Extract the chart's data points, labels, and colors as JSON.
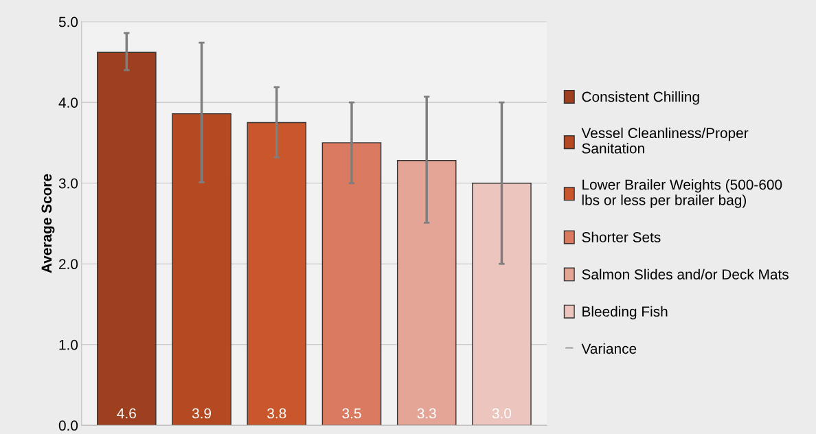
{
  "chart_data": {
    "type": "bar",
    "ylabel": "Average Score",
    "categories": [
      null,
      null,
      null,
      null,
      null,
      null
    ],
    "series": [
      {
        "name": "Consistent Chilling",
        "color": "#9e3f1f",
        "values": [
          4.62,
          null,
          null,
          null,
          null,
          null
        ],
        "errors": [
          [
            4.4,
            4.86
          ],
          null,
          null,
          null,
          null,
          null
        ],
        "value_labels": [
          "4.6",
          null,
          null,
          null,
          null,
          null
        ]
      },
      {
        "name": "Vessel Cleanliness/Proper Sanitation",
        "color": "#b54a22",
        "values": [
          null,
          3.86,
          null,
          null,
          null,
          null
        ],
        "errors": [
          null,
          [
            3.01,
            4.74
          ],
          null,
          null,
          null,
          null
        ],
        "value_labels": [
          null,
          "3.9",
          null,
          null,
          null,
          null
        ]
      },
      {
        "name": "Lower Brailer Weights (500-600 lbs or less per brailer bag)",
        "color": "#c9572b",
        "values": [
          null,
          null,
          3.75,
          null,
          null,
          null
        ],
        "errors": [
          null,
          null,
          [
            3.32,
            4.19
          ],
          null,
          null,
          null
        ],
        "value_labels": [
          null,
          null,
          "3.8",
          null,
          null,
          null
        ]
      },
      {
        "name": "Shorter Sets",
        "color": "#da7a60",
        "values": [
          null,
          null,
          null,
          3.5,
          null,
          null
        ],
        "errors": [
          null,
          null,
          null,
          [
            3.0,
            4.0
          ],
          null,
          null
        ],
        "value_labels": [
          null,
          null,
          null,
          "3.5",
          null,
          null
        ]
      },
      {
        "name": "Salmon Slides and/or Deck Mats",
        "color": "#e4a597",
        "values": [
          null,
          null,
          null,
          null,
          3.28,
          null
        ],
        "errors": [
          null,
          null,
          null,
          null,
          [
            2.51,
            4.07
          ],
          null
        ],
        "value_labels": [
          null,
          null,
          null,
          null,
          "3.3",
          null
        ]
      },
      {
        "name": "Bleeding Fish",
        "color": "#ecc5be",
        "values": [
          null,
          null,
          null,
          null,
          null,
          3.0
        ],
        "errors": [
          null,
          null,
          null,
          null,
          null,
          [
            2.0,
            4.0
          ]
        ],
        "value_labels": [
          null,
          null,
          null,
          null,
          null,
          "3.0"
        ]
      }
    ],
    "annotations": [
      "Variance"
    ],
    "ylim": [
      0,
      5
    ],
    "yticks": [
      {
        "value": 0,
        "label": "0.0"
      },
      {
        "value": 1,
        "label": "1.0"
      },
      {
        "value": 2,
        "label": "2.0"
      },
      {
        "value": 3,
        "label": "3.0"
      },
      {
        "value": 4,
        "label": "4.0"
      },
      {
        "value": 5,
        "label": "5.0"
      }
    ],
    "grid": "y",
    "legend": "right"
  }
}
